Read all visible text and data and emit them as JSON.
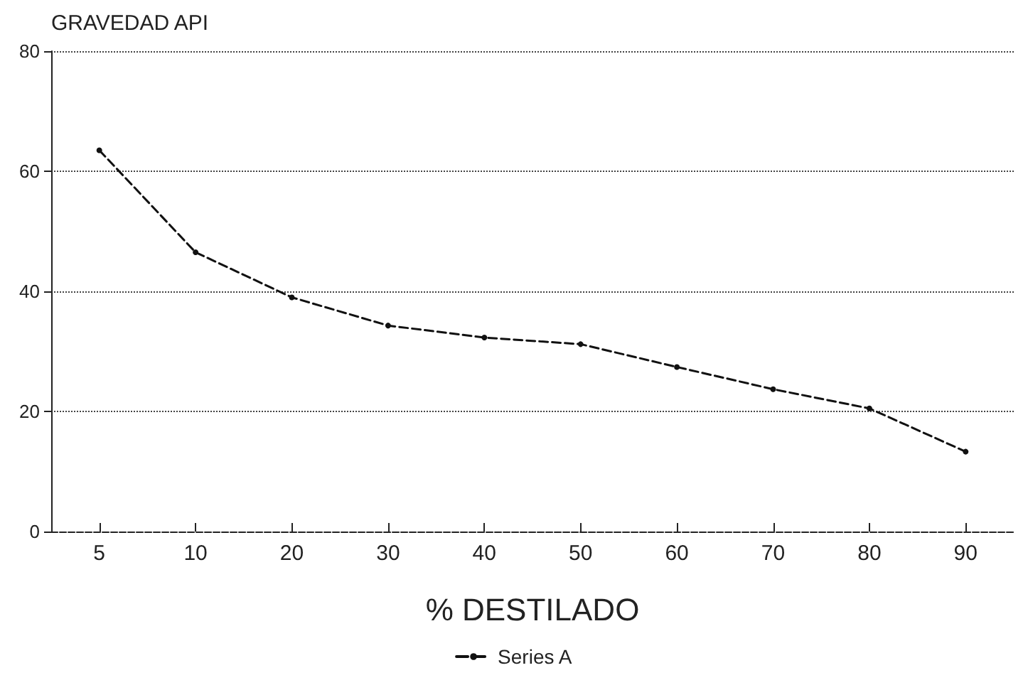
{
  "chart_data": {
    "type": "line",
    "ylabel": "GRAVEDAD API",
    "xlabel": "% DESTILADO",
    "categories": [
      "5",
      "10",
      "20",
      "30",
      "40",
      "50",
      "60",
      "70",
      "80",
      "90"
    ],
    "series": [
      {
        "name": "Series A",
        "color": "#111111",
        "values": [
          63.5,
          46.5,
          39,
          34.3,
          32.3,
          31.2,
          27.4,
          23.7,
          20.5,
          13.3
        ]
      }
    ],
    "ylim": [
      0,
      80
    ],
    "yticks": [
      0,
      20,
      40,
      60,
      80
    ],
    "grid": "y",
    "legend": "bottom",
    "marker": "circle",
    "line_style": "dashed"
  }
}
